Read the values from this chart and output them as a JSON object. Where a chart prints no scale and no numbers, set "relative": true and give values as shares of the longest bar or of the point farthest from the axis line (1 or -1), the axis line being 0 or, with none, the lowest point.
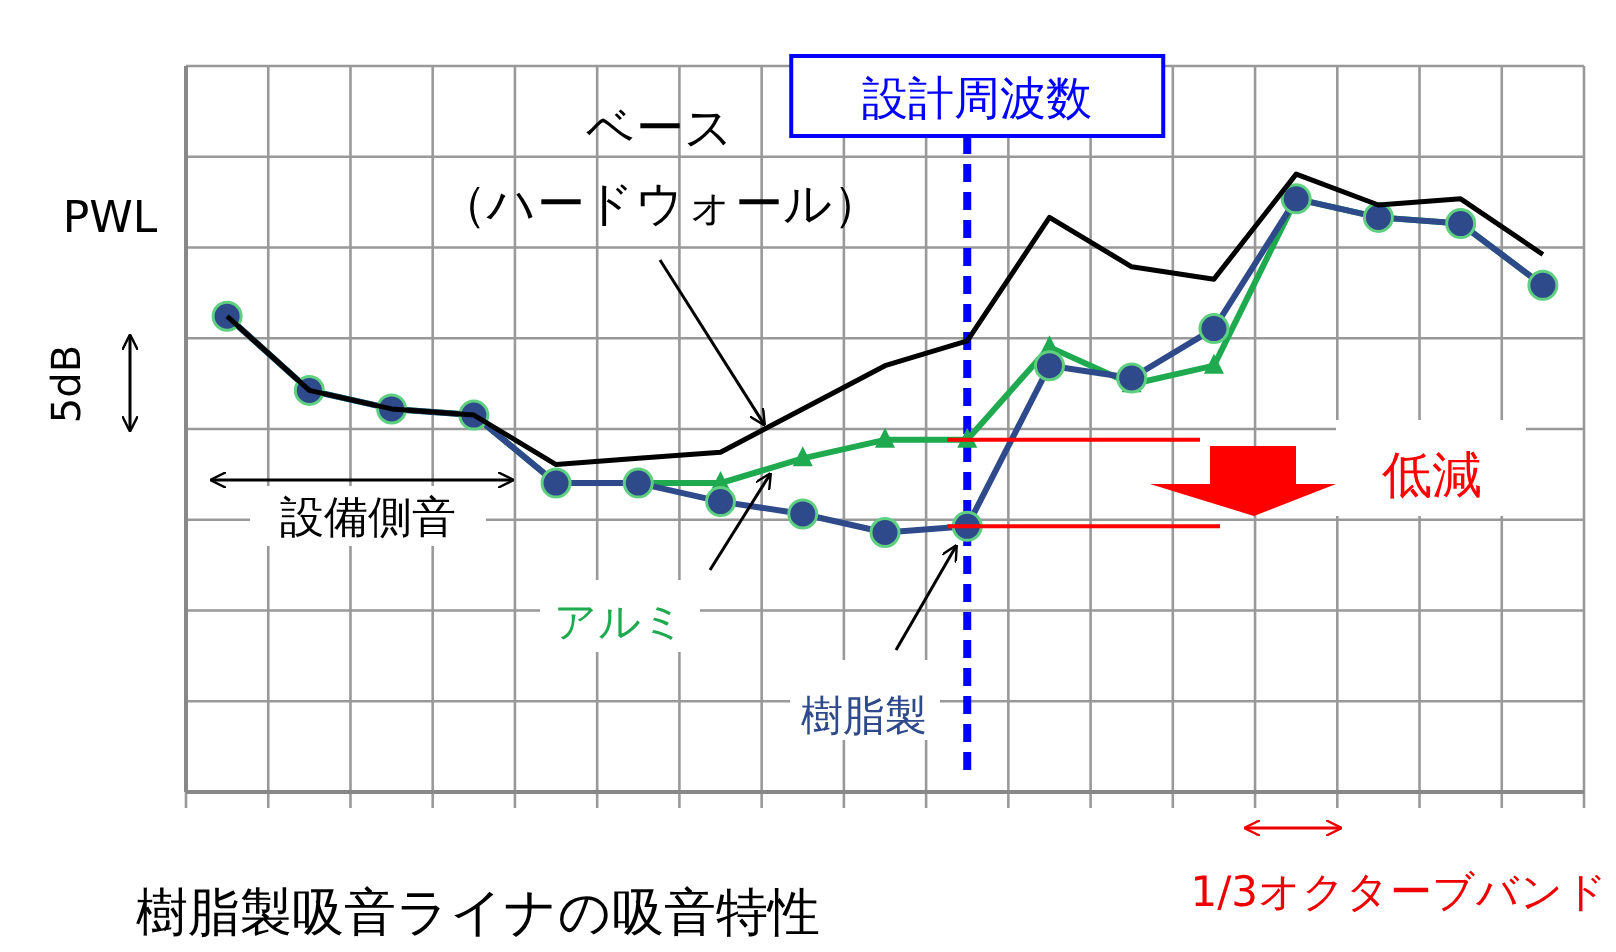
{
  "chart_data": {
    "type": "line",
    "title": "樹脂製吸音ライナの吸音特性",
    "ylabel": "PWL",
    "relative": true,
    "categories": [
      null,
      null,
      null,
      null,
      null,
      null,
      null,
      null,
      null,
      null,
      null,
      null,
      null,
      null,
      null,
      null,
      null
    ],
    "grid": true,
    "legend": false,
    "series": [
      {
        "name": "ベース（ハードウォール）",
        "color": "#000000",
        "marker": "none",
        "values": [
          0.77,
          0.65,
          0.62,
          0.61,
          0.53,
          0.54,
          0.55,
          0.62,
          0.69,
          0.73,
          0.93,
          0.85,
          0.83,
          1.0,
          0.95,
          0.96,
          0.87
        ]
      },
      {
        "name": "樹脂製",
        "color": "#2e4a8a",
        "marker": "circle",
        "values": [
          0.77,
          0.65,
          0.62,
          0.61,
          0.5,
          0.5,
          0.47,
          0.45,
          0.42,
          0.43,
          0.69,
          0.67,
          0.75,
          0.96,
          0.93,
          0.92,
          0.82
        ]
      },
      {
        "name": "アルミ",
        "color": "#1faa50",
        "marker": "triangle",
        "values": [
          0.77,
          0.65,
          0.62,
          0.61,
          0.5,
          0.5,
          0.5,
          0.54,
          0.57,
          0.57,
          0.72,
          0.66,
          0.69,
          0.96,
          0.93,
          0.92,
          0.82
        ]
      }
    ],
    "ref_lines": [
      {
        "axis": "x",
        "label": "設計周波数",
        "color": "#0000ff",
        "line_style": "dashed"
      }
    ],
    "annotations": [
      "5dB",
      "設備側音",
      "低減",
      "1/3オクターブバンド"
    ]
  }
}
